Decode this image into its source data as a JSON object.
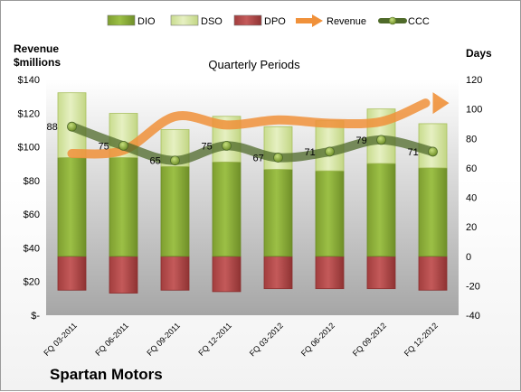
{
  "company": "Spartan Motors",
  "chart_data": {
    "type": "bar",
    "title": "Quarterly Periods",
    "left_axis_label": [
      "Revenue",
      "$millions"
    ],
    "right_axis_label": "Days",
    "categories": [
      "FQ 03-2011",
      "FQ 06-2011",
      "FQ 09-2011",
      "FQ 12-2011",
      "FQ 03-2012",
      "FQ 06-2012",
      "FQ 09-2012",
      "FQ 12-2012"
    ],
    "left_axis": {
      "min": 0,
      "max": 140,
      "step": 20,
      "tick_labels": [
        "$-",
        "$20",
        "$40",
        "$60",
        "$80",
        "$100",
        "$120",
        "$140"
      ]
    },
    "right_axis": {
      "min": -40,
      "max": 120,
      "step": 20,
      "tick_labels": [
        "-40",
        "-20",
        "0",
        "20",
        "40",
        "60",
        "80",
        "100",
        "120"
      ]
    },
    "legend": {
      "position": "top",
      "entries": [
        {
          "name": "DIO",
          "type": "bar",
          "color": "#8fb03c"
        },
        {
          "name": "DSO",
          "type": "bar",
          "color": "#d7e6a6"
        },
        {
          "name": "DPO",
          "type": "bar",
          "color": "#b84c4c"
        },
        {
          "name": "Revenue",
          "type": "line",
          "color": "#f0913a"
        },
        {
          "name": "CCC",
          "type": "line",
          "color": "#4f6a2a"
        }
      ]
    },
    "series": [
      {
        "name": "DIO",
        "axis": "right",
        "values": [
          67,
          67,
          61,
          64,
          59,
          58,
          63,
          60
        ]
      },
      {
        "name": "DSO",
        "axis": "right",
        "values": [
          44,
          30,
          25,
          31,
          29,
          34,
          37,
          30
        ]
      },
      {
        "name": "DPO",
        "axis": "right",
        "values": [
          -23,
          -25,
          -23,
          -24,
          -22,
          -22,
          -22,
          -23
        ]
      },
      {
        "name": "Revenue",
        "axis": "left",
        "values": [
          96,
          98,
          118,
          113,
          116,
          114,
          115,
          126
        ]
      },
      {
        "name": "CCC",
        "axis": "right",
        "values": [
          88,
          75,
          65,
          75,
          67,
          71,
          79,
          71
        ]
      }
    ],
    "data_labels": [
      "88",
      "75",
      "65",
      "75",
      "67",
      "71",
      "79",
      "71"
    ],
    "colors": {
      "plot_top": "#ffffff",
      "plot_bottom": "#a6a6a6",
      "dio_fill": "#8fb03c",
      "dio_edge": "#6a8a26",
      "dso_fill": "#d7e6a6",
      "dso_edge": "#a9c060",
      "dpo_fill": "#b84c4c",
      "dpo_edge": "#8a2f2f",
      "revenue_line": "#f0913a",
      "ccc_line": "#4f6a2a",
      "ccc_marker": "#8fb03c"
    },
    "grid": false
  }
}
